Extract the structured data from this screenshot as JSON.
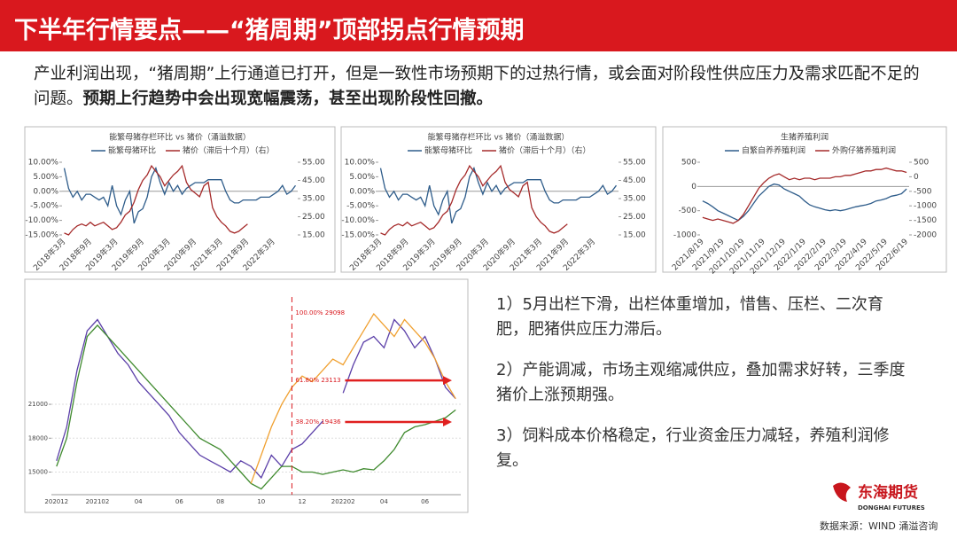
{
  "header": {
    "title": "下半年行情要点——“猪周期”顶部拐点行情预期"
  },
  "intro": {
    "text": "产业利润出现，“猪周期”上行通道已打开，但是一致性市场预期下的过热行情，或会面对阶段性供应压力及需求匹配不足的问题。",
    "bold": "预期上行趋势中会出现宽幅震荡，甚至出现阶段性回撤。"
  },
  "points": [
    "1）5月出栏下滑，出栏体重增加，惜售、压栏、二次育肥，肥猪供应压力滞后。",
    "2）产能调减，市场主观缩减供应，叠加需求好转，三季度猪价上涨预期强。",
    "3）饲料成本价格稳定，行业资金压力减轻，养殖利润修复。"
  ],
  "logo": {
    "name": "东海期货",
    "sub": "DONGHAI FUTURES"
  },
  "source": "数据来源：WIND 涌溢咨询",
  "chart_data": [
    {
      "type": "line",
      "title": "能繁母猪存栏环比 vs 猪价（涌溢数据）",
      "categories": [
        "2018年3月",
        null,
        null,
        null,
        null,
        null,
        "2018年9月",
        null,
        null,
        null,
        null,
        null,
        "2019年3月",
        null,
        null,
        null,
        null,
        null,
        "2019年9月",
        null,
        null,
        null,
        null,
        null,
        "2020年3月",
        null,
        null,
        null,
        null,
        null,
        "2020年9月",
        null,
        null,
        null,
        null,
        null,
        "2021年3月",
        null,
        null,
        null,
        null,
        null,
        "2021年9月",
        null,
        null,
        null,
        null,
        null,
        "2022年3月",
        null,
        null,
        null,
        null,
        null
      ],
      "ylim": [
        -15,
        10
      ],
      "yticks": [
        {
          "value": -15,
          "label": "-15.00%"
        },
        {
          "value": -10,
          "label": "-10.00%"
        },
        {
          "value": -5,
          "label": "-5.00%"
        },
        {
          "value": 0,
          "label": "0.00%"
        },
        {
          "value": 5,
          "label": "5.00%"
        },
        {
          "value": 10,
          "label": "10.00%"
        }
      ],
      "y2lim": [
        15,
        55
      ],
      "y2ticks": [
        {
          "value": 15,
          "label": "15.00"
        },
        {
          "value": 25,
          "label": "25.00"
        },
        {
          "value": 35,
          "label": "35.00"
        },
        {
          "value": 45,
          "label": "45.00"
        },
        {
          "value": 55,
          "label": "55.00"
        }
      ],
      "series": [
        {
          "name": "能繁母猪环比",
          "color": "#2e5c8a",
          "values": [
            8,
            1,
            -2,
            0,
            -3,
            -1,
            -1,
            -2,
            -3,
            -2,
            -5,
            2,
            -5,
            -8,
            -3,
            0,
            -11,
            -7,
            -6,
            -2,
            5,
            8,
            3,
            -1,
            3,
            0,
            2,
            -1,
            1,
            2,
            3,
            3,
            3,
            4,
            4,
            4,
            4,
            0,
            -3,
            -4,
            -4,
            -3,
            -3,
            -3,
            -3,
            -2,
            -2,
            -2,
            -1,
            0,
            2,
            -1,
            0,
            2
          ]
        },
        {
          "name": "猪价（滞后十个月）（右）",
          "color": "#a52a2a",
          "axis": "y2",
          "values": [
            16,
            15,
            18,
            20,
            21,
            20,
            22,
            20,
            21,
            22,
            20,
            18,
            19,
            22,
            26,
            28,
            33,
            40,
            45,
            48,
            53,
            50,
            47,
            42,
            45,
            48,
            50,
            53,
            44,
            40,
            38,
            36,
            42,
            44,
            30,
            25,
            22,
            20,
            17,
            16,
            17,
            19,
            21,
            null,
            null,
            null,
            null,
            null,
            null,
            null,
            null,
            null,
            null,
            null
          ]
        }
      ]
    },
    {
      "type": "line",
      "title": "能繁母猪存栏环比 vs 猪价（涌溢数据）",
      "categories": [
        "2018年3月",
        null,
        null,
        null,
        null,
        null,
        "2018年9月",
        null,
        null,
        null,
        null,
        null,
        "2019年3月",
        null,
        null,
        null,
        null,
        null,
        "2019年9月",
        null,
        null,
        null,
        null,
        null,
        "2020年3月",
        null,
        null,
        null,
        null,
        null,
        "2020年9月",
        null,
        null,
        null,
        null,
        null,
        "2021年3月",
        null,
        null,
        null,
        null,
        null,
        "2021年9月",
        null,
        null,
        null,
        null,
        null,
        "2022年3月",
        null,
        null,
        null,
        null,
        null
      ],
      "ylim": [
        -15,
        10
      ],
      "yticks": [
        {
          "value": -15,
          "label": "-15.00%"
        },
        {
          "value": -10,
          "label": "-10.00%"
        },
        {
          "value": -5,
          "label": "-5.00%"
        },
        {
          "value": 0,
          "label": "0.00%"
        },
        {
          "value": 5,
          "label": "5.00%"
        },
        {
          "value": 10,
          "label": "10.00%"
        }
      ],
      "y2lim": [
        15,
        55
      ],
      "y2ticks": [
        {
          "value": 15,
          "label": "15.00"
        },
        {
          "value": 25,
          "label": "25.00"
        },
        {
          "value": 35,
          "label": "35.00"
        },
        {
          "value": 45,
          "label": "45.00"
        },
        {
          "value": 55,
          "label": "55.00"
        }
      ],
      "series": [
        {
          "name": "能繁母猪环比",
          "color": "#2e5c8a",
          "values": [
            8,
            1,
            -2,
            0,
            -3,
            -1,
            -1,
            -2,
            -3,
            -2,
            -5,
            2,
            -5,
            -8,
            -3,
            0,
            -11,
            -7,
            -6,
            -2,
            5,
            8,
            3,
            -1,
            3,
            0,
            2,
            -1,
            1,
            2,
            3,
            3,
            3,
            4,
            4,
            4,
            4,
            0,
            -3,
            -4,
            -4,
            -3,
            -3,
            -3,
            -3,
            -2,
            -2,
            -2,
            -1,
            0,
            2,
            -1,
            0,
            2
          ]
        },
        {
          "name": "猪价（滞后十个月）（右）",
          "color": "#a52a2a",
          "axis": "y2",
          "values": [
            16,
            15,
            18,
            20,
            21,
            20,
            22,
            20,
            21,
            22,
            20,
            18,
            19,
            22,
            26,
            28,
            33,
            40,
            45,
            48,
            53,
            50,
            47,
            42,
            45,
            48,
            50,
            53,
            44,
            40,
            38,
            36,
            42,
            44,
            30,
            25,
            22,
            20,
            17,
            16,
            17,
            19,
            21,
            null,
            null,
            null,
            null,
            null,
            null,
            null,
            null,
            null,
            null,
            null
          ]
        }
      ]
    },
    {
      "type": "line",
      "title": "生猪养殖利润",
      "categories": [
        "2021/8/19",
        null,
        null,
        null,
        "2021/9/19",
        null,
        null,
        null,
        "2021/10/19",
        null,
        null,
        null,
        "2021/11/19",
        null,
        null,
        null,
        "2021/12/19",
        null,
        null,
        null,
        "2022/1/19",
        null,
        null,
        null,
        "2022/2/19",
        null,
        null,
        null,
        "2022/3/19",
        null,
        null,
        null,
        "2022/4/19",
        null,
        null,
        null,
        "2022/5/19",
        null,
        null,
        null,
        "2022/6/19"
      ],
      "ylim": [
        -1000,
        500
      ],
      "yticks": [
        -1000,
        -500,
        0,
        500
      ],
      "y2lim": [
        -2000,
        500
      ],
      "y2ticks": [
        -2000,
        -1500,
        -1000,
        -500,
        0,
        500
      ],
      "series": [
        {
          "name": "自繁自养养殖利润",
          "color": "#2e5c8a",
          "values": [
            -300,
            -350,
            -420,
            -500,
            -550,
            -600,
            -650,
            -700,
            -620,
            -500,
            -350,
            -200,
            -100,
            0,
            50,
            30,
            -50,
            -100,
            -150,
            -200,
            -300,
            -380,
            -420,
            -450,
            -480,
            -500,
            -480,
            -500,
            -480,
            -450,
            -420,
            -400,
            -380,
            -350,
            -300,
            -280,
            -250,
            -200,
            -180,
            -150,
            -50
          ]
        },
        {
          "name": "外购仔猪养殖利润",
          "color": "#a52a2a",
          "axis": "y2",
          "values": [
            -1400,
            -1450,
            -1500,
            -1450,
            -1500,
            -1550,
            -1600,
            -1500,
            -1300,
            -1000,
            -700,
            -400,
            -200,
            -50,
            50,
            100,
            0,
            -100,
            -50,
            -100,
            -50,
            -50,
            -100,
            -50,
            -50,
            -50,
            0,
            0,
            50,
            50,
            100,
            150,
            200,
            200,
            250,
            250,
            300,
            250,
            200,
            200,
            150
          ]
        }
      ]
    },
    {
      "type": "line",
      "categories": [
        "202012",
        null,
        null,
        null,
        "202102",
        null,
        null,
        null,
        "04",
        null,
        null,
        null,
        "06",
        null,
        null,
        null,
        "08",
        null,
        null,
        null,
        "10",
        null,
        null,
        null,
        "12",
        null,
        null,
        null,
        "202202",
        null,
        null,
        null,
        "04",
        null,
        null,
        null,
        "06",
        null,
        null,
        null
      ],
      "ylim": [
        13000,
        30500
      ],
      "yticks": [
        15000,
        18000,
        21000
      ],
      "series": [
        {
          "color": "#5b3fa8",
          "values": [
            16000,
            19000,
            24000,
            27500,
            28500,
            27000,
            25500,
            24500,
            23000,
            22000,
            21000,
            20000,
            18500,
            17500,
            16500,
            16000,
            15500,
            15000,
            16000,
            15500,
            14500,
            16500,
            15500,
            17000,
            17500,
            18500,
            19500,
            null,
            22000,
            24500,
            26500,
            27000,
            26000,
            28500,
            27500,
            26000,
            27000,
            25000,
            22500,
            21500
          ]
        },
        {
          "color": "#3f8a2e",
          "values": [
            15500,
            18000,
            23000,
            27000,
            28000,
            27000,
            26000,
            25000,
            24000,
            23000,
            22000,
            21000,
            20000,
            19000,
            18000,
            17500,
            17000,
            16000,
            15000,
            14000,
            13500,
            14500,
            15500,
            15500,
            15000,
            15000,
            14800,
            15000,
            15200,
            15000,
            15300,
            15200,
            16000,
            17000,
            18500,
            19000,
            19200,
            19500,
            19800,
            20500
          ]
        },
        {
          "color": "#f0a030",
          "values": [
            null,
            null,
            null,
            null,
            null,
            null,
            null,
            null,
            null,
            null,
            null,
            null,
            null,
            null,
            null,
            null,
            null,
            null,
            null,
            14000,
            16500,
            19000,
            21000,
            22500,
            23500,
            23000,
            24000,
            25000,
            24500,
            26000,
            27500,
            29000,
            28000,
            27000,
            28500,
            27500,
            26500,
            25000,
            23000,
            21500
          ]
        }
      ],
      "annotations": [
        {
          "text": "100.00%  29098",
          "value": 29098
        },
        {
          "text": "61.80%  23113",
          "value": 23113
        },
        {
          "text": "38.20%  19436",
          "value": 19436
        }
      ]
    }
  ]
}
